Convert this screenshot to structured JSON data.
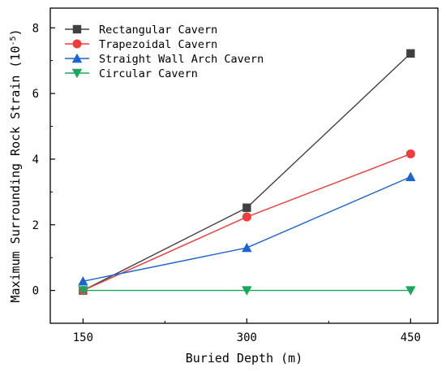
{
  "chart_data": {
    "type": "line",
    "xlabel": "Buried Depth (m)",
    "ylabel": "Maximum Surrounding Rock Strain",
    "ylabel_unit_base": "10",
    "ylabel_unit_exp": "-5",
    "x": [
      150,
      300,
      450
    ],
    "x_ticks": [
      150,
      300,
      450
    ],
    "y_ticks": [
      0,
      2,
      4,
      6,
      8
    ],
    "xlim": [
      120,
      475
    ],
    "ylim": [
      -1,
      8.6
    ],
    "grid": false,
    "legend_position": "top-left",
    "series": [
      {
        "name": "Rectangular Cavern",
        "color": "#404040",
        "marker": "square",
        "values": [
          0.0,
          2.52,
          7.22
        ]
      },
      {
        "name": "Trapezoidal Cavern",
        "color": "#f03c3c",
        "marker": "circle",
        "values": [
          0.0,
          2.24,
          4.16
        ]
      },
      {
        "name": "Straight Wall Arch Cavern",
        "color": "#1a64d6",
        "marker": "triangle-up",
        "values": [
          0.28,
          1.3,
          3.46
        ]
      },
      {
        "name": "Circular Cavern",
        "color": "#18a85c",
        "marker": "triangle-down",
        "values": [
          0.0,
          0.0,
          0.0
        ]
      }
    ]
  }
}
